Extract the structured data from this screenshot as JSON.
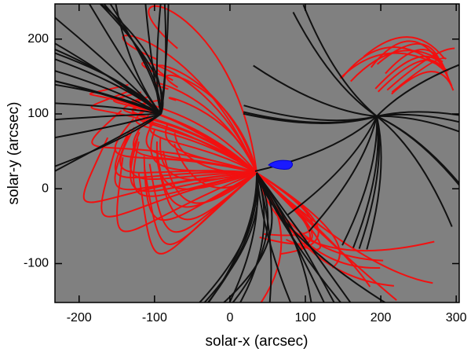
{
  "chart_data": {
    "type": "image",
    "xlabel": "solar-x (arcsec)",
    "ylabel": "solar-y (arcsec)",
    "xlim": [
      -232,
      304
    ],
    "ylim": [
      -152,
      247
    ],
    "xticks": [
      -200,
      -100,
      0,
      100,
      200,
      300
    ],
    "yticks": [
      -100,
      0,
      100,
      200
    ]
  }
}
